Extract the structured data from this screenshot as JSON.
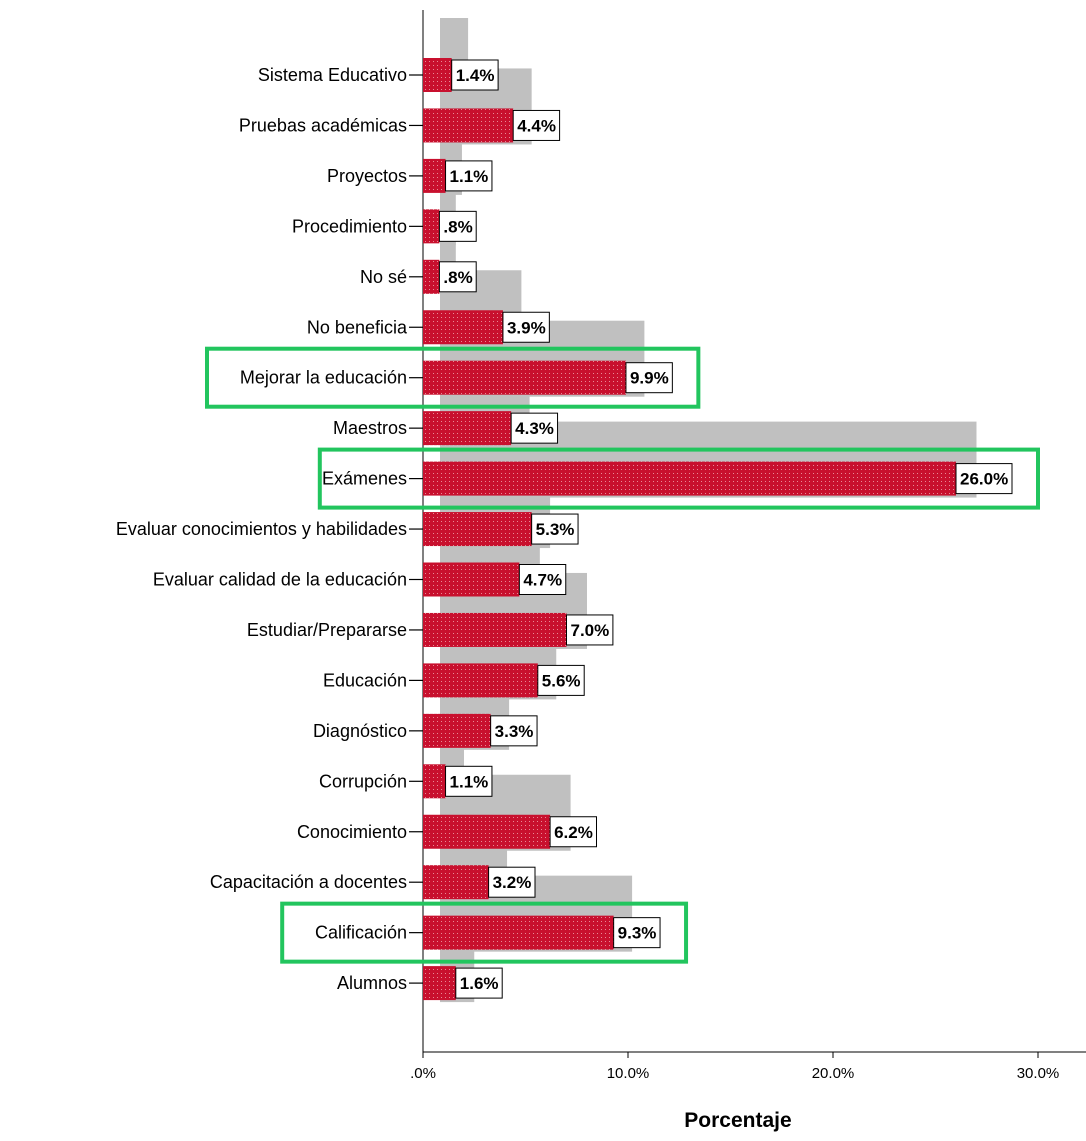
{
  "chart_data": {
    "type": "bar",
    "orientation": "horizontal",
    "xlabel": "Porcentaje",
    "xlim": [
      0,
      32
    ],
    "x_ticks": [
      ".0%",
      "10.0%",
      "20.0%",
      "30.0%"
    ],
    "x_tick_values": [
      0,
      10,
      20,
      30
    ],
    "categories": [
      "Sistema Educativo",
      "Pruebas académicas",
      "Proyectos",
      "Procedimiento",
      "No sé",
      "No beneficia",
      "Mejorar la educación",
      "Maestros",
      "Exámenes",
      "Evaluar conocimientos y habilidades",
      "Evaluar calidad de la educación",
      "Estudiar/Prepararse",
      "Educación",
      "Diagnóstico",
      "Corrupción",
      "Conocimiento",
      "Capacitación a docentes",
      "Calificación",
      "Alumnos"
    ],
    "series": [
      {
        "values": [
          1.4,
          4.4,
          1.1,
          0.8,
          0.8,
          3.9,
          9.9,
          4.3,
          26.0,
          5.3,
          4.7,
          7.0,
          5.6,
          3.3,
          1.1,
          6.2,
          3.2,
          9.3,
          1.6
        ],
        "labels": [
          "1.4%",
          "4.4%",
          "1.1%",
          ".8%",
          ".8%",
          "3.9%",
          "9.9%",
          "4.3%",
          "26.0%",
          "5.3%",
          "4.7%",
          "7.0%",
          "5.6%",
          "3.3%",
          "1.1%",
          "6.2%",
          "3.2%",
          "9.3%",
          "1.6%"
        ],
        "color": "#c8102e"
      },
      {
        "values": [
          2.2,
          5.3,
          1.9,
          1.6,
          1.6,
          4.8,
          10.8,
          5.2,
          27.0,
          6.2,
          5.7,
          8.0,
          6.5,
          4.2,
          2.0,
          7.2,
          4.1,
          10.2,
          2.5
        ],
        "color": "#c0c0c0"
      }
    ],
    "highlighted": [
      "Mejorar la educación",
      "Exámenes",
      "Calificación"
    ],
    "highlight_color": "#22c55e"
  }
}
